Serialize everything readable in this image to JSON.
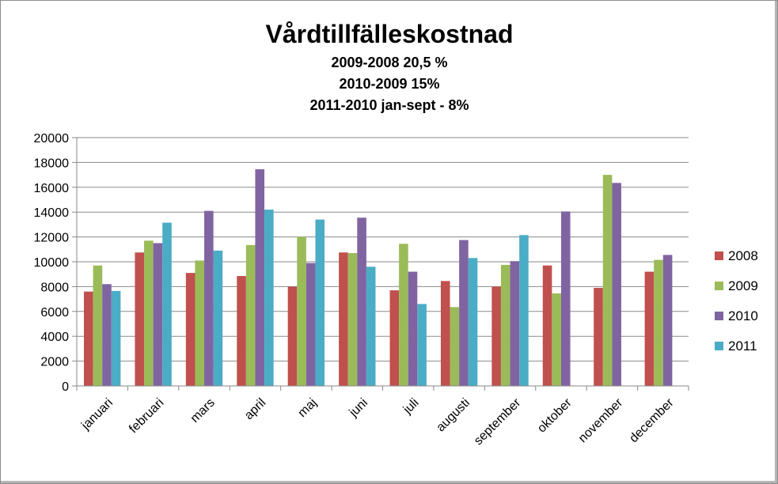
{
  "chart_data": {
    "type": "bar",
    "title": "Vårdtillfälleskostnad",
    "subtitles": [
      "2009-2008  20,5 %",
      "2010-2009 15%",
      "2011-2010 jan-sept - 8%"
    ],
    "categories": [
      "januari",
      "februari",
      "mars",
      "april",
      "maj",
      "juni",
      "juli",
      "augusti",
      "september",
      "oktober",
      "november",
      "december"
    ],
    "series": [
      {
        "name": "2008",
        "color": "#c0504d",
        "values": [
          7600,
          10750,
          9100,
          8850,
          8000,
          10750,
          7700,
          8450,
          8000,
          9700,
          7900,
          9200
        ]
      },
      {
        "name": "2009",
        "color": "#9bbb59",
        "values": [
          9700,
          11700,
          10100,
          11350,
          12000,
          10700,
          11450,
          6350,
          9750,
          7450,
          17000,
          10150
        ]
      },
      {
        "name": "2010",
        "color": "#8064a2",
        "values": [
          8200,
          11500,
          14100,
          17450,
          9900,
          13550,
          9200,
          11750,
          10050,
          14050,
          16350,
          10550
        ]
      },
      {
        "name": "2011",
        "color": "#4bacc6",
        "values": [
          7650,
          13150,
          10900,
          14200,
          13400,
          9600,
          6600,
          10300,
          12150,
          null,
          null,
          null
        ]
      }
    ],
    "ylim": [
      0,
      20000
    ],
    "yticks": [
      "0",
      "2000",
      "4000",
      "6000",
      "8000",
      "10000",
      "12000",
      "14000",
      "16000",
      "18000",
      "20000"
    ],
    "ytick_values": [
      0,
      2000,
      4000,
      6000,
      8000,
      10000,
      12000,
      14000,
      16000,
      18000,
      20000
    ],
    "grid": true,
    "legend_position": "right",
    "xlabel": "",
    "ylabel": ""
  }
}
